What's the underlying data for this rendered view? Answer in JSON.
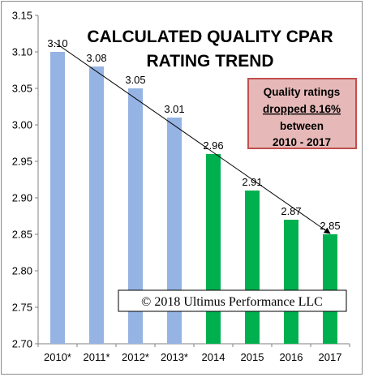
{
  "chart_data": {
    "type": "bar",
    "title_lines": [
      "CALCULATED QUALITY CPAR",
      "RATING TREND"
    ],
    "categories": [
      "2010*",
      "2011*",
      "2012*",
      "2013*",
      "2014",
      "2015",
      "2016",
      "2017"
    ],
    "values": [
      3.1,
      3.08,
      3.05,
      3.01,
      2.96,
      2.91,
      2.87,
      2.85
    ],
    "data_labels": [
      "3.10",
      "3.08",
      "3.05",
      "3.01",
      "2.96",
      "2.91",
      "2.87",
      "2.85"
    ],
    "bar_colors": [
      "#95b3e3",
      "#95b3e3",
      "#95b3e3",
      "#95b3e3",
      "#00b04f",
      "#00b04f",
      "#00b04f",
      "#00b04f"
    ],
    "ylim": [
      2.7,
      3.15
    ],
    "yticks": [
      "2.70",
      "2.75",
      "2.80",
      "2.85",
      "2.90",
      "2.95",
      "3.00",
      "3.05",
      "3.10",
      "3.15"
    ],
    "grid": false,
    "trend_arrow": {
      "from_category": "2010*",
      "to_category": "2017",
      "color": "#000000"
    },
    "annotation_box": {
      "lines": [
        "Quality ratings",
        "dropped 8.16%",
        "between",
        "2010 - 2017"
      ],
      "underlined_line": 1,
      "fill": "#e6b9b8",
      "border": "#c0504d"
    },
    "copyright": "© 2018 Ultimus Performance LLC"
  }
}
